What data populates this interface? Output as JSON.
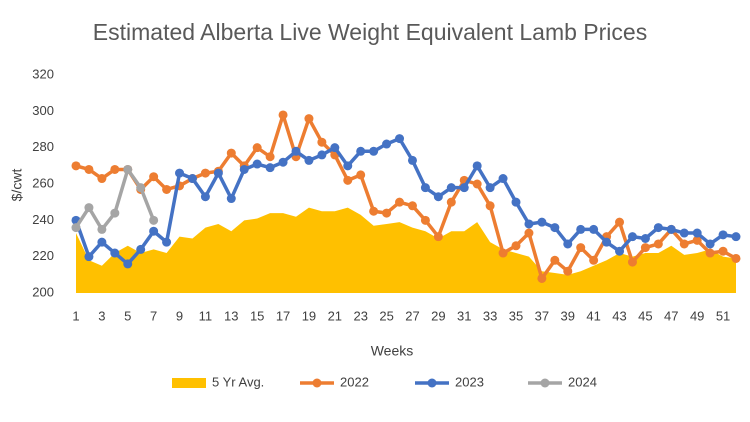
{
  "chart_data": {
    "type": "line",
    "title": "Estimated Alberta Live Weight Equivalent Lamb Prices",
    "x_label": "Weeks",
    "y_label": "$/cwt",
    "categories": [
      1,
      null,
      3,
      null,
      5,
      null,
      7,
      null,
      9,
      null,
      11,
      null,
      13,
      null,
      15,
      null,
      17,
      null,
      19,
      null,
      21,
      null,
      23,
      null,
      25,
      null,
      27,
      null,
      29,
      null,
      31,
      null,
      33,
      null,
      35,
      null,
      37,
      null,
      39,
      null,
      41,
      null,
      43,
      null,
      45,
      null,
      47,
      null,
      49,
      null,
      51,
      null
    ],
    "ylim": [
      200,
      320
    ],
    "yticks": [
      200,
      220,
      240,
      260,
      280,
      300,
      320
    ],
    "grid": false,
    "legend": "bottom",
    "series": [
      {
        "name": "5 Yr Avg.",
        "kind": "area",
        "color": "#ffc000",
        "values": [
          233,
          218,
          215,
          222,
          226,
          222,
          224,
          222,
          231,
          230,
          236,
          238,
          234,
          240,
          241,
          244,
          244,
          242,
          247,
          245,
          245,
          247,
          243,
          237,
          238,
          239,
          236,
          234,
          230,
          234,
          234,
          239,
          228,
          224,
          222,
          220,
          212,
          211,
          210,
          212,
          215,
          218,
          222,
          220,
          222,
          222,
          226,
          221,
          222,
          224,
          220,
          219
        ]
      },
      {
        "name": "2022",
        "kind": "line",
        "color": "#ed7d31",
        "values": [
          270,
          268,
          263,
          268,
          268,
          257,
          264,
          257,
          259,
          263,
          266,
          267,
          277,
          270,
          280,
          275,
          298,
          275,
          296,
          283,
          276,
          262,
          265,
          245,
          244,
          250,
          248,
          240,
          231,
          250,
          262,
          260,
          248,
          222,
          226,
          233,
          208,
          218,
          212,
          225,
          218,
          231,
          239,
          217,
          225,
          227,
          235,
          227,
          229,
          222,
          223,
          219
        ]
      },
      {
        "name": "2023",
        "kind": "line",
        "color": "#4472c4",
        "values": [
          240,
          220,
          228,
          222,
          216,
          224,
          234,
          228,
          266,
          263,
          253,
          266,
          252,
          268,
          271,
          269,
          272,
          278,
          273,
          276,
          280,
          270,
          278,
          278,
          282,
          285,
          273,
          258,
          253,
          258,
          258,
          270,
          258,
          263,
          250,
          238,
          239,
          236,
          227,
          235,
          235,
          228,
          223,
          231,
          230,
          236,
          235,
          233,
          233,
          227,
          232,
          231
        ]
      },
      {
        "name": "2024",
        "kind": "line",
        "color": "#a5a5a5",
        "values": [
          236,
          247,
          235,
          244,
          268,
          258,
          240,
          null,
          null,
          null,
          null,
          null,
          null,
          null,
          null,
          null,
          null,
          null,
          null,
          null,
          null,
          null,
          null,
          null,
          null,
          null,
          null,
          null,
          null,
          null,
          null,
          null,
          null,
          null,
          null,
          null,
          null,
          null,
          null,
          null,
          null,
          null,
          null,
          null,
          null,
          null,
          null,
          null,
          null,
          null,
          null,
          null
        ]
      }
    ]
  }
}
